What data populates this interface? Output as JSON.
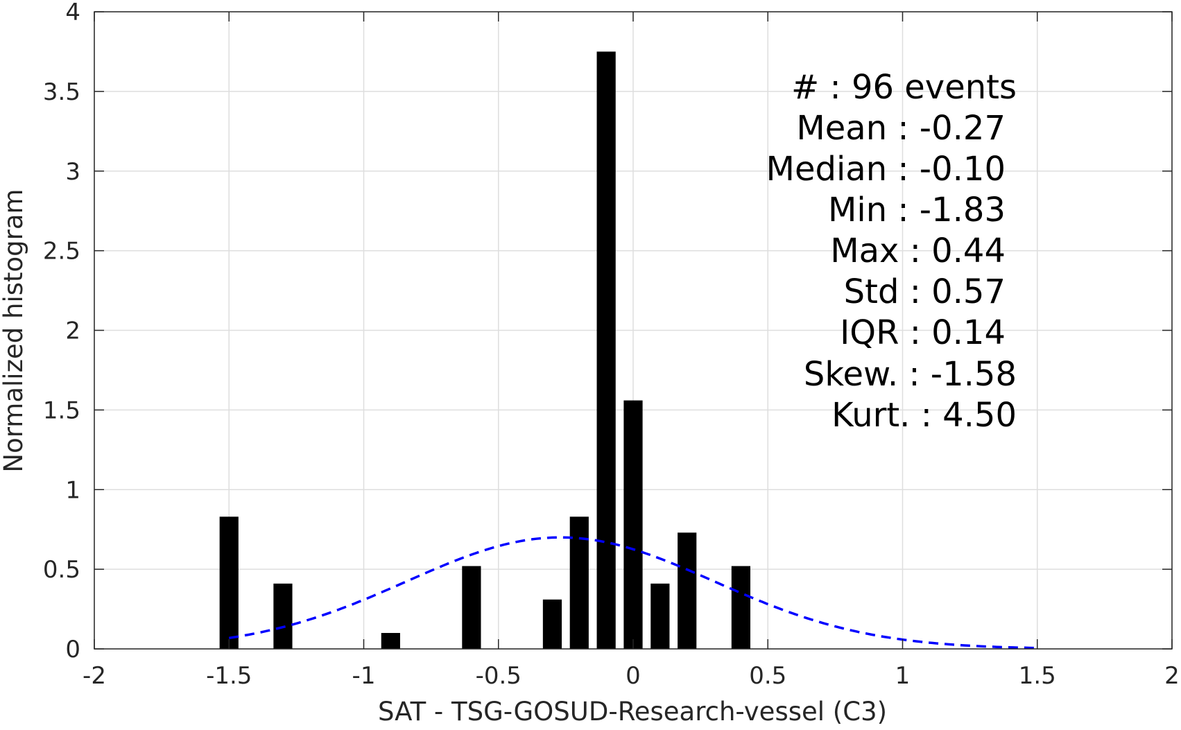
{
  "chart_data": {
    "type": "bar",
    "xlabel": "SAT - TSG-GOSUD-Research-vessel (C3)",
    "ylabel": "Normalized histogram",
    "xlim": [
      -2,
      2
    ],
    "ylim": [
      0,
      4
    ],
    "grid": true,
    "x_ticks": [
      "-2",
      "-1.5",
      "-1",
      "-0.5",
      "0",
      "0.5",
      "1",
      "1.5",
      "2"
    ],
    "y_ticks": [
      "0",
      "0.5",
      "1",
      "1.5",
      "2",
      "2.5",
      "3",
      "3.5",
      "4"
    ],
    "bar_color": "#000000",
    "bar_width": 0.07,
    "bins": [
      {
        "x": -1.5,
        "value": 0.83
      },
      {
        "x": -1.3,
        "value": 0.41
      },
      {
        "x": -0.9,
        "value": 0.1
      },
      {
        "x": -0.6,
        "value": 0.52
      },
      {
        "x": -0.3,
        "value": 0.31
      },
      {
        "x": -0.2,
        "value": 0.83
      },
      {
        "x": -0.1,
        "value": 3.75
      },
      {
        "x": 0.0,
        "value": 1.56
      },
      {
        "x": 0.1,
        "value": 0.41
      },
      {
        "x": 0.2,
        "value": 0.73
      },
      {
        "x": 0.4,
        "value": 0.52
      }
    ],
    "fit_curve": {
      "style": "dashed",
      "color": "#0000ff",
      "distribution": "normal",
      "mean": -0.27,
      "std": 0.57,
      "x_range": [
        -1.5,
        1.5
      ]
    },
    "stats_lines": [
      "#  : 96 events",
      "Mean : -0.27",
      "Median : -0.10",
      "Min : -1.83",
      "Max : 0.44",
      "Std : 0.57",
      "IQR : 0.14",
      "Skew. : -1.58",
      "Kurt. : 4.50"
    ]
  }
}
